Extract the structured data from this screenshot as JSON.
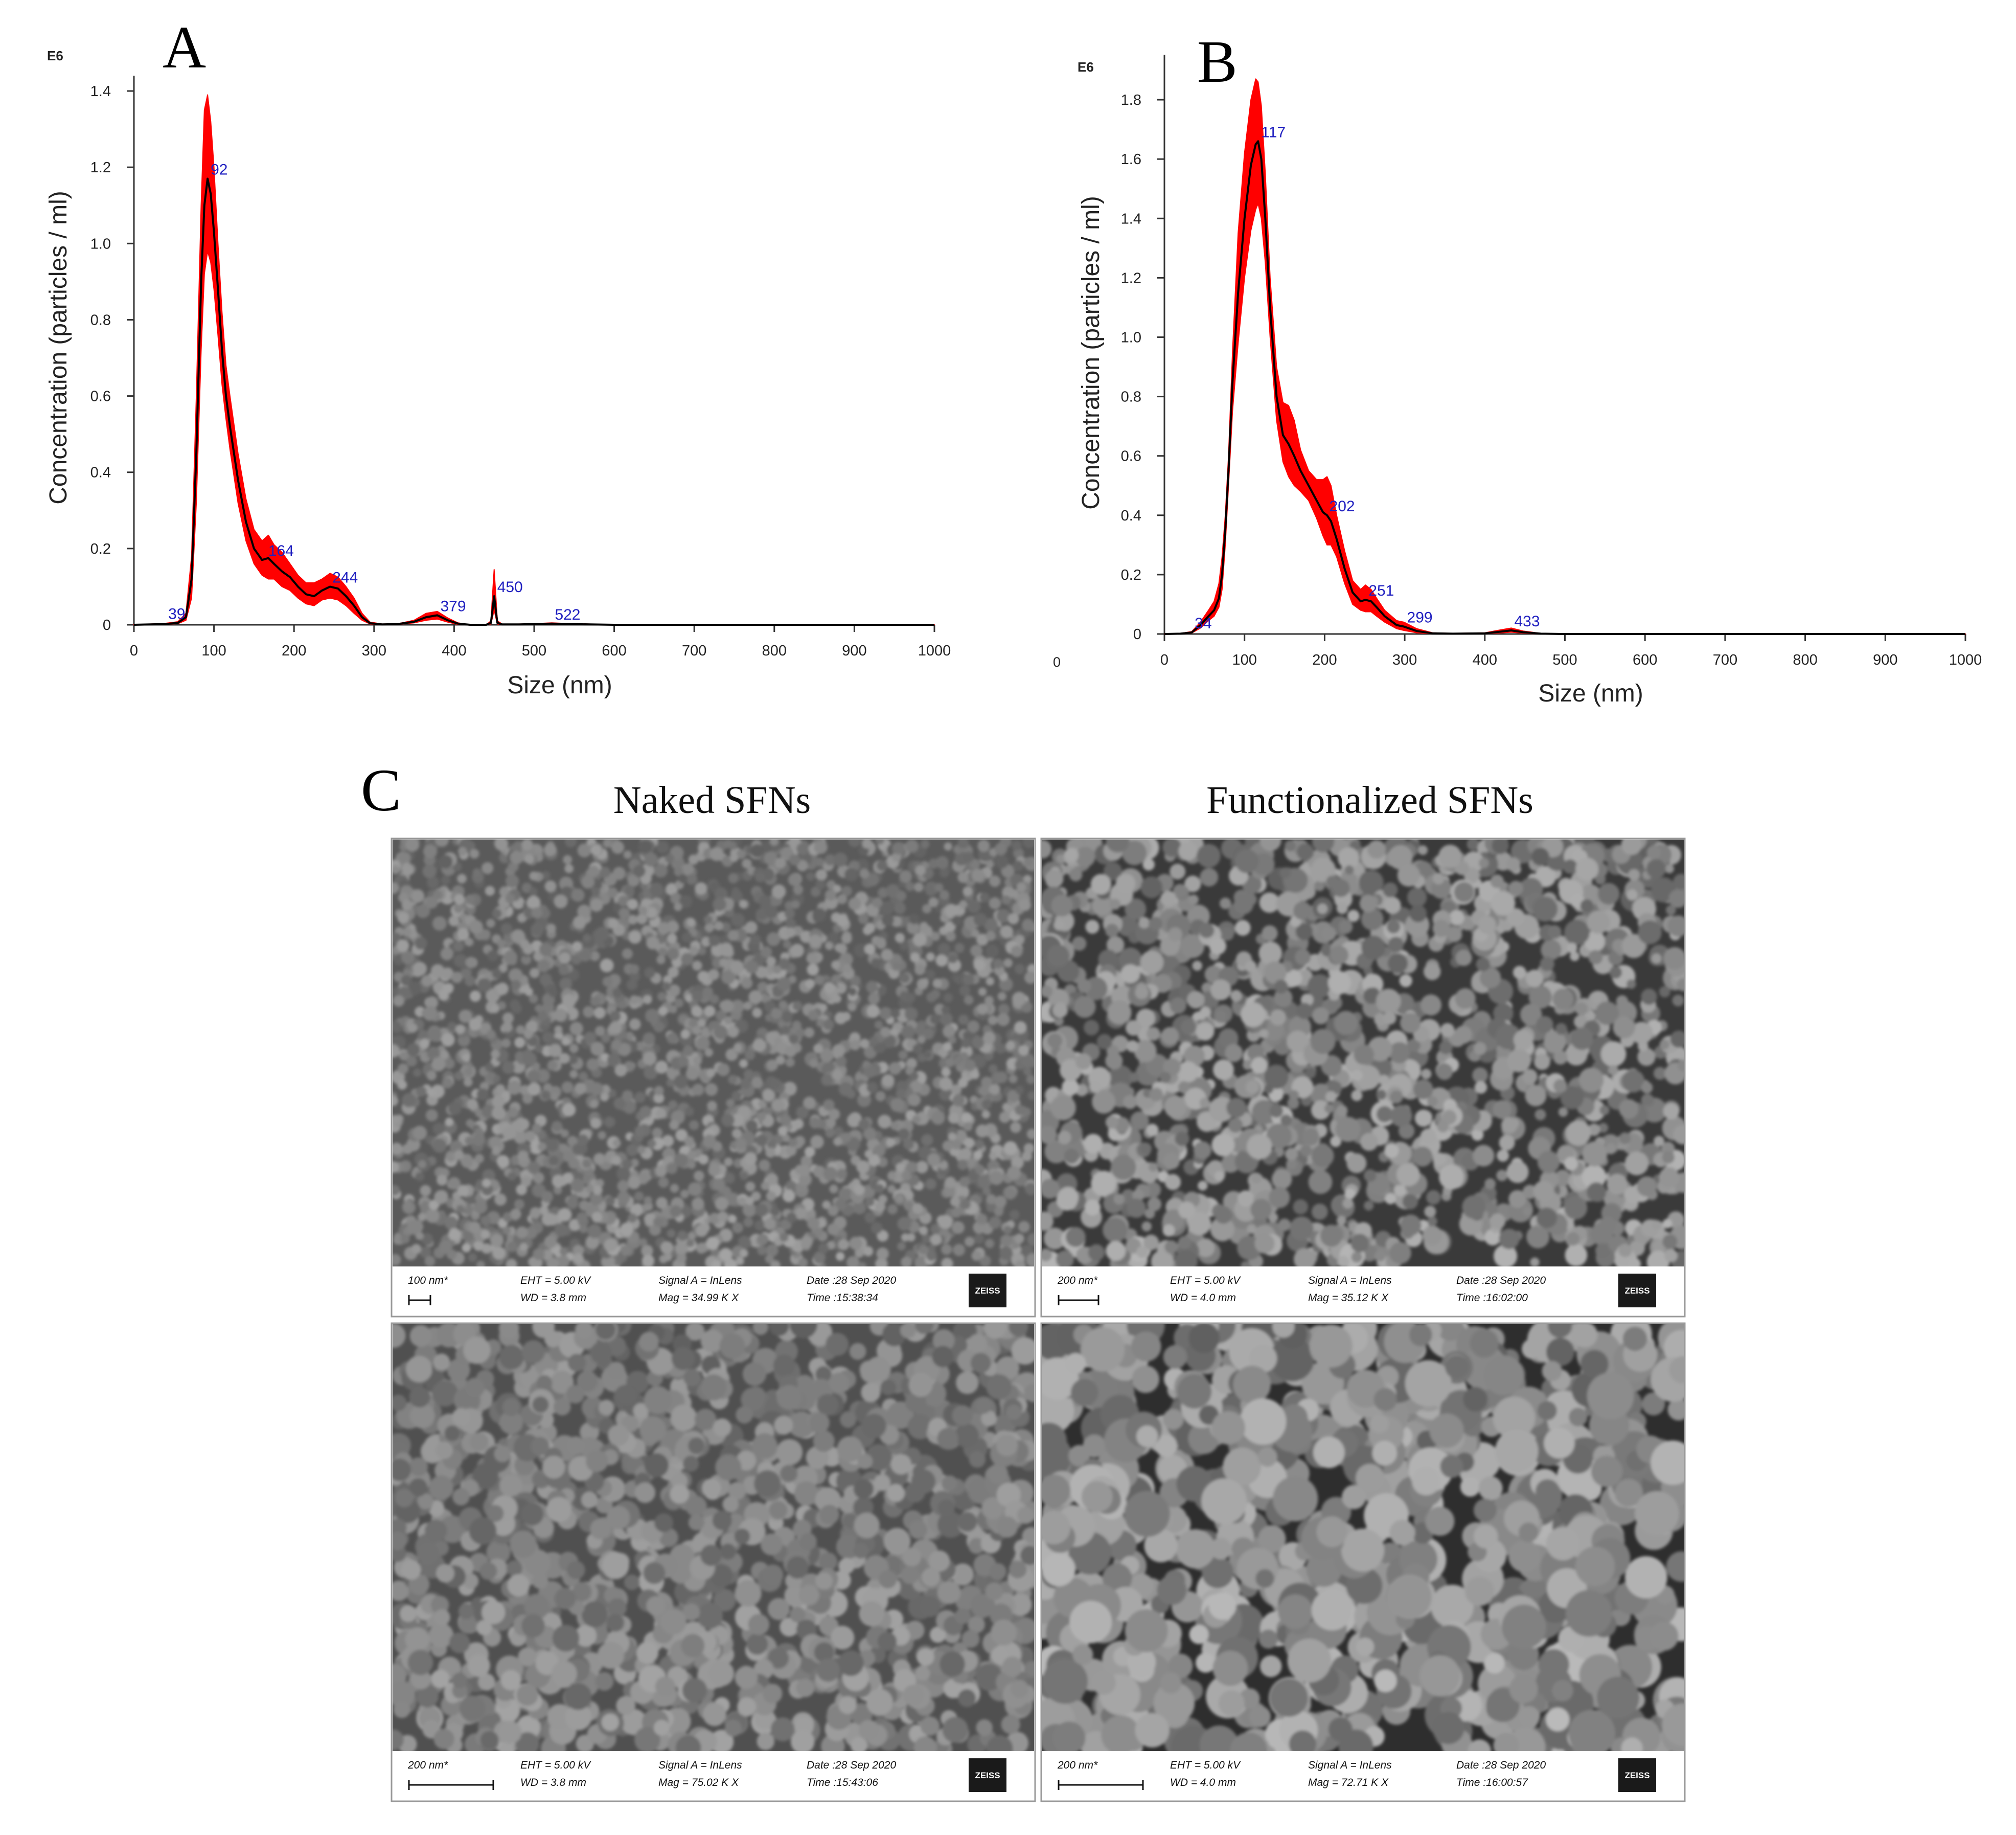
{
  "panels": {
    "a": {
      "letter": "A"
    },
    "b": {
      "letter": "B"
    },
    "c": {
      "letter": "C"
    }
  },
  "chart_data": [
    {
      "type": "area",
      "panel": "A",
      "multiplier_label": "E6",
      "xlabel": "Size (nm)",
      "ylabel": "Concentration (particles / ml)",
      "xlim": [
        0,
        1000
      ],
      "ylim": [
        0,
        1.4
      ],
      "xticks": [
        0,
        100,
        200,
        300,
        400,
        500,
        600,
        700,
        800,
        900,
        1000
      ],
      "yticks": [
        0,
        0.2,
        0.4,
        0.6,
        0.8,
        1.0,
        1.2,
        1.4
      ],
      "ytick_labels": [
        "0",
        "0.2",
        "0.4",
        "0.6",
        "0.8",
        "1.0",
        "1.2",
        "1.4"
      ],
      "band_color": "#ff0000",
      "line_color": "#000000",
      "label_color": "#2020c0",
      "x": [
        0,
        40,
        55,
        65,
        72,
        78,
        84,
        88,
        92,
        96,
        100,
        105,
        110,
        115,
        120,
        130,
        140,
        150,
        160,
        168,
        175,
        185,
        195,
        205,
        215,
        225,
        235,
        245,
        255,
        265,
        275,
        285,
        295,
        310,
        330,
        350,
        365,
        379,
        392,
        405,
        420,
        440,
        446,
        448,
        450,
        452,
        454,
        460,
        480,
        500,
        522,
        545,
        570,
        600,
        700,
        800,
        900,
        1000
      ],
      "mean": [
        0,
        0.002,
        0.005,
        0.02,
        0.12,
        0.45,
        0.9,
        1.1,
        1.17,
        1.13,
        1.03,
        0.88,
        0.72,
        0.6,
        0.52,
        0.38,
        0.27,
        0.2,
        0.17,
        0.175,
        0.16,
        0.14,
        0.125,
        0.1,
        0.08,
        0.075,
        0.09,
        0.1,
        0.095,
        0.075,
        0.05,
        0.02,
        0.004,
        0.001,
        0.002,
        0.008,
        0.02,
        0.025,
        0.012,
        0.003,
        0,
        0,
        0.005,
        0.04,
        0.075,
        0.04,
        0.005,
        0.001,
        0.001,
        0.002,
        0.003,
        0.002,
        0.001,
        0,
        0,
        0,
        0,
        0
      ],
      "upper": [
        0,
        0.004,
        0.008,
        0.03,
        0.18,
        0.6,
        1.1,
        1.35,
        1.39,
        1.32,
        1.2,
        1.0,
        0.82,
        0.68,
        0.6,
        0.45,
        0.33,
        0.25,
        0.22,
        0.235,
        0.21,
        0.19,
        0.16,
        0.13,
        0.11,
        0.11,
        0.12,
        0.135,
        0.125,
        0.1,
        0.07,
        0.03,
        0.007,
        0.002,
        0.003,
        0.012,
        0.03,
        0.035,
        0.018,
        0.005,
        0,
        0,
        0.01,
        0.08,
        0.145,
        0.08,
        0.01,
        0.002,
        0.002,
        0.003,
        0.005,
        0.003,
        0.002,
        0,
        0,
        0,
        0,
        0
      ],
      "lower": [
        0,
        0.001,
        0.003,
        0.012,
        0.07,
        0.32,
        0.72,
        0.92,
        0.98,
        0.95,
        0.88,
        0.76,
        0.63,
        0.54,
        0.46,
        0.32,
        0.22,
        0.16,
        0.13,
        0.12,
        0.12,
        0.1,
        0.09,
        0.07,
        0.055,
        0.05,
        0.065,
        0.07,
        0.065,
        0.05,
        0.03,
        0.012,
        0.002,
        0,
        0.001,
        0.005,
        0.012,
        0.015,
        0.007,
        0.001,
        0,
        0,
        0.002,
        0.02,
        0.04,
        0.02,
        0.002,
        0,
        0,
        0.001,
        0.002,
        0.001,
        0,
        0,
        0,
        0,
        0,
        0
      ],
      "peak_labels": [
        {
          "text": "39",
          "x": 39,
          "y": 0.005
        },
        {
          "text": "92",
          "x": 92,
          "y": 1.17
        },
        {
          "text": "164",
          "x": 164,
          "y": 0.17
        },
        {
          "text": "244",
          "x": 244,
          "y": 0.1
        },
        {
          "text": "379",
          "x": 379,
          "y": 0.025
        },
        {
          "text": "450",
          "x": 450,
          "y": 0.075
        },
        {
          "text": "522",
          "x": 522,
          "y": 0.003
        }
      ]
    },
    {
      "type": "area",
      "panel": "B",
      "multiplier_label": "E6",
      "xlabel": "Size (nm)",
      "ylabel": "Concentration (particles / ml)",
      "xlim": [
        0,
        1000
      ],
      "ylim": [
        0,
        1.9
      ],
      "xticks": [
        0,
        100,
        200,
        300,
        400,
        500,
        600,
        700,
        800,
        900,
        1000
      ],
      "yticks": [
        0,
        0.2,
        0.4,
        0.6,
        0.8,
        1.0,
        1.2,
        1.4,
        1.6,
        1.8
      ],
      "ytick_labels": [
        "0",
        "0.2",
        "0.4",
        "0.6",
        "0.8",
        "1.0",
        "1.2",
        "1.4",
        "1.6",
        "1.8"
      ],
      "extra_label": "0",
      "band_color": "#ff0000",
      "line_color": "#000000",
      "label_color": "#2020c0",
      "x": [
        0,
        20,
        34,
        45,
        55,
        62,
        68,
        72,
        76,
        80,
        85,
        92,
        100,
        108,
        114,
        117,
        121,
        126,
        132,
        140,
        148,
        155,
        162,
        170,
        180,
        190,
        198,
        203,
        208,
        215,
        225,
        235,
        245,
        251,
        258,
        265,
        275,
        290,
        299,
        315,
        335,
        360,
        400,
        420,
        433,
        448,
        470,
        500,
        600,
        700,
        800,
        900,
        1000
      ],
      "mean": [
        0,
        0.001,
        0.005,
        0.03,
        0.06,
        0.08,
        0.12,
        0.2,
        0.35,
        0.55,
        0.85,
        1.15,
        1.4,
        1.58,
        1.65,
        1.66,
        1.6,
        1.4,
        1.1,
        0.8,
        0.67,
        0.64,
        0.6,
        0.55,
        0.5,
        0.45,
        0.41,
        0.4,
        0.38,
        0.32,
        0.22,
        0.14,
        0.11,
        0.115,
        0.11,
        0.09,
        0.06,
        0.03,
        0.025,
        0.01,
        0.002,
        0.001,
        0.002,
        0.008,
        0.012,
        0.006,
        0.001,
        0,
        0,
        0,
        0,
        0,
        0
      ],
      "upper": [
        0,
        0.002,
        0.008,
        0.04,
        0.08,
        0.11,
        0.17,
        0.26,
        0.4,
        0.6,
        0.95,
        1.35,
        1.62,
        1.8,
        1.87,
        1.86,
        1.78,
        1.55,
        1.2,
        0.9,
        0.78,
        0.77,
        0.72,
        0.62,
        0.55,
        0.52,
        0.52,
        0.53,
        0.5,
        0.4,
        0.28,
        0.18,
        0.15,
        0.165,
        0.15,
        0.12,
        0.08,
        0.045,
        0.04,
        0.018,
        0.004,
        0.002,
        0.004,
        0.014,
        0.02,
        0.01,
        0.002,
        0,
        0,
        0,
        0,
        0,
        0
      ],
      "lower": [
        0,
        0,
        0.003,
        0.02,
        0.045,
        0.06,
        0.09,
        0.15,
        0.3,
        0.5,
        0.75,
        0.98,
        1.2,
        1.36,
        1.43,
        1.45,
        1.4,
        1.25,
        1.0,
        0.72,
        0.58,
        0.53,
        0.5,
        0.48,
        0.45,
        0.39,
        0.33,
        0.3,
        0.3,
        0.26,
        0.17,
        0.1,
        0.08,
        0.075,
        0.075,
        0.06,
        0.04,
        0.018,
        0.012,
        0.004,
        0.001,
        0,
        0.001,
        0.004,
        0.006,
        0.003,
        0,
        0,
        0,
        0,
        0,
        0,
        0
      ],
      "peak_labels": [
        {
          "text": "34",
          "x": 34,
          "y": 0.005
        },
        {
          "text": "117",
          "x": 117,
          "y": 1.66
        },
        {
          "text": "202",
          "x": 202,
          "y": 0.4
        },
        {
          "text": "251",
          "x": 251,
          "y": 0.115
        },
        {
          "text": "299",
          "x": 299,
          "y": 0.025
        },
        {
          "text": "433",
          "x": 433,
          "y": 0.012
        }
      ]
    }
  ],
  "sem": {
    "naked_title": "Naked SFNs",
    "functionalized_title": "Functionalized SFNs",
    "brand": "ZEISS",
    "images": [
      {
        "scale_label": "100 nm*",
        "eht": "EHT = 5.00 kV",
        "wd": "WD = 3.8 mm",
        "signal": "Signal A = InLens",
        "mag": "Mag = 34.99 K X",
        "date": "Date :28 Sep 2020",
        "time": "Time :15:38:34",
        "texture": "fine"
      },
      {
        "scale_label": "200 nm*",
        "eht": "EHT = 5.00 kV",
        "wd": "WD = 4.0 mm",
        "signal": "Signal A = InLens",
        "mag": "Mag = 35.12 K X",
        "date": "Date :28 Sep 2020",
        "time": "Time :16:02:00",
        "texture": "clustered"
      },
      {
        "scale_label": "200 nm*",
        "eht": "EHT = 5.00 kV",
        "wd": "WD = 3.8 mm",
        "signal": "Signal A = InLens",
        "mag": "Mag = 75.02 K X",
        "date": "Date :28 Sep 2020",
        "time": "Time :15:43:06",
        "texture": "medium"
      },
      {
        "scale_label": "200 nm*",
        "eht": "EHT = 5.00 kV",
        "wd": "WD = 4.0 mm",
        "signal": "Signal A = InLens",
        "mag": "Mag = 72.71 K X",
        "date": "Date :28 Sep 2020",
        "time": "Time :16:00:57",
        "texture": "coarse"
      }
    ]
  }
}
